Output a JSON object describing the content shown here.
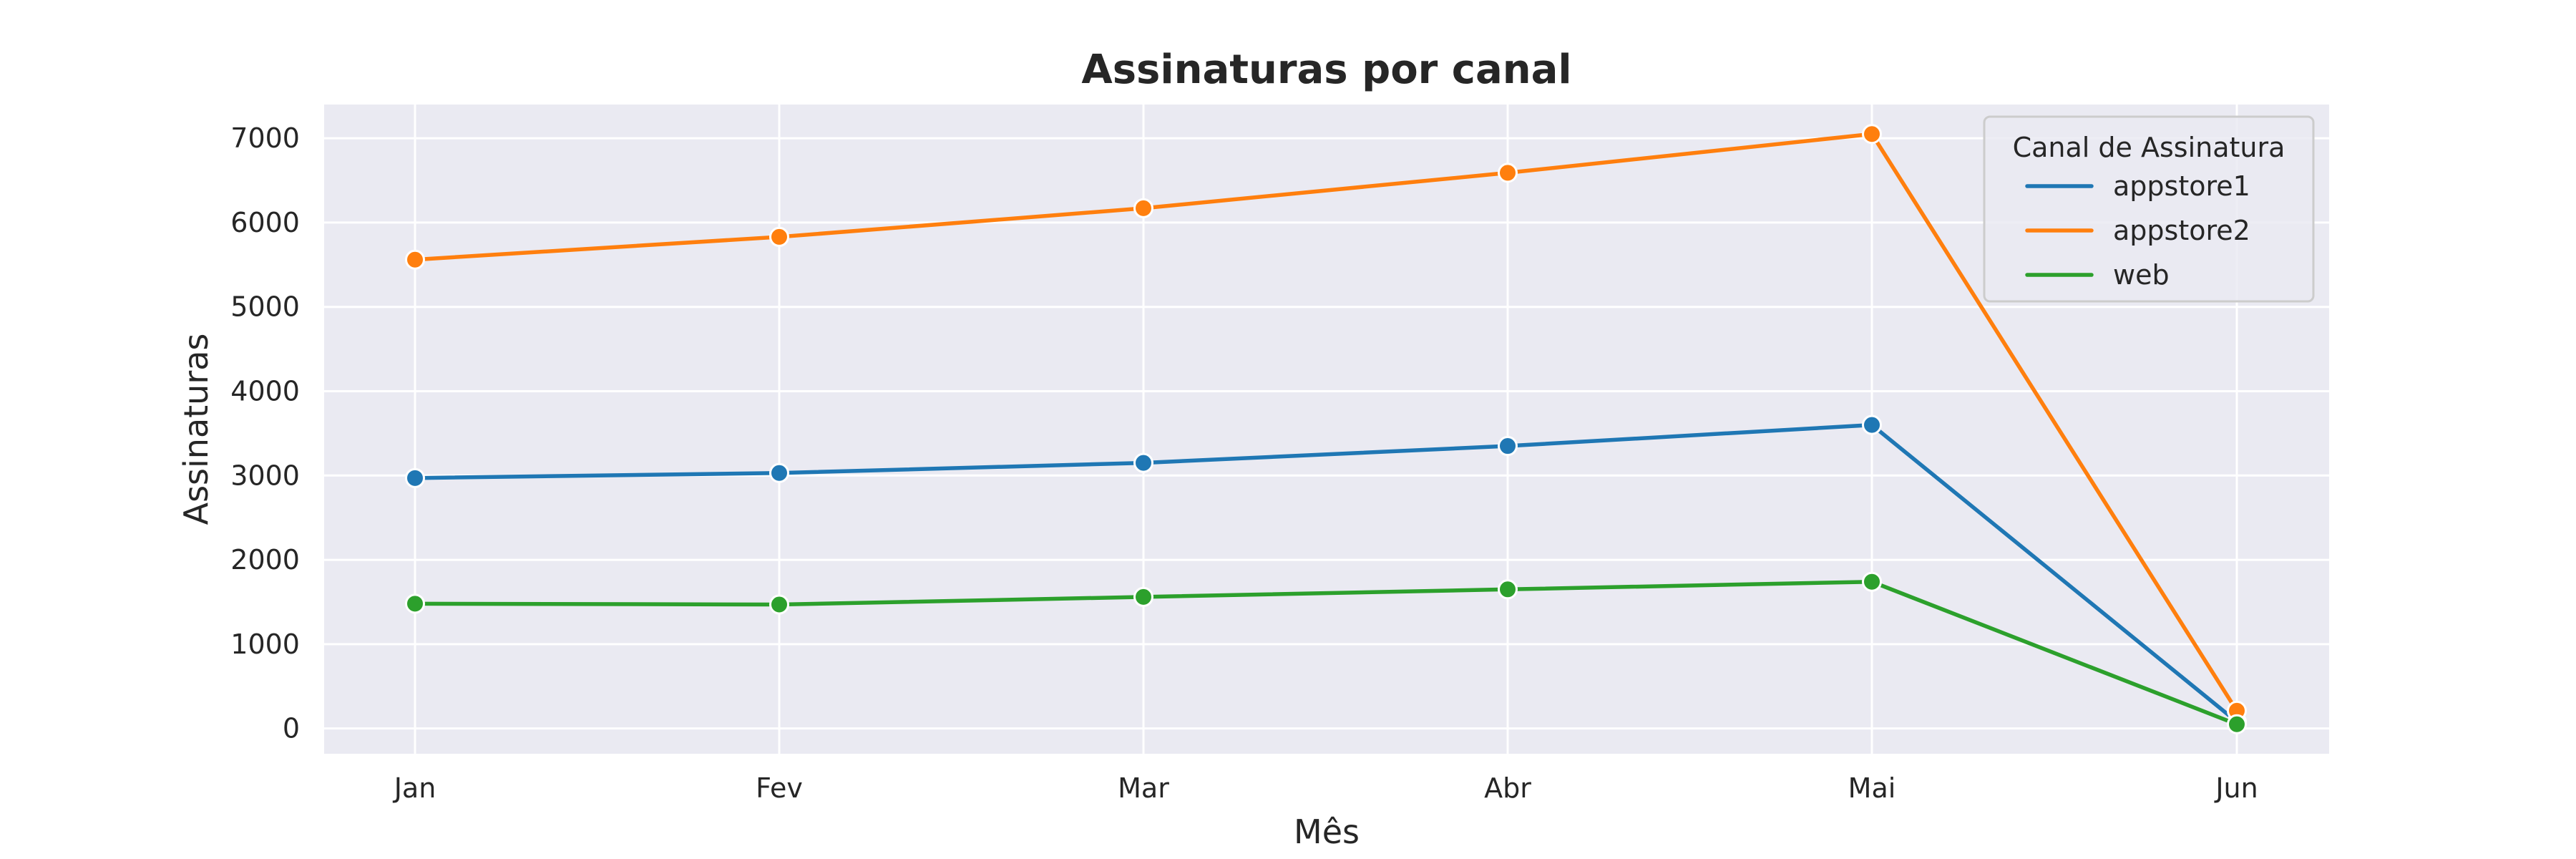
{
  "chart_data": {
    "type": "line",
    "title": "Assinaturas por canal",
    "xlabel": "Mês",
    "ylabel": "Assinaturas",
    "categories": [
      "Jan",
      "Fev",
      "Mar",
      "Abr",
      "Mai",
      "Jun"
    ],
    "ylim": [
      -300,
      7400
    ],
    "yticks": [
      0,
      1000,
      2000,
      3000,
      4000,
      5000,
      6000,
      7000
    ],
    "grid": true,
    "legend": {
      "title": "Canal de Assinatura",
      "placement": "top-right"
    },
    "series": [
      {
        "name": "appstore1",
        "color": "#1f77b4",
        "values": [
          2970,
          3030,
          3150,
          3350,
          3600,
          80
        ]
      },
      {
        "name": "appstore2",
        "color": "#ff7f0e",
        "values": [
          5560,
          5830,
          6170,
          6590,
          7050,
          210
        ]
      },
      {
        "name": "web",
        "color": "#2ca02c",
        "values": [
          1480,
          1470,
          1560,
          1650,
          1740,
          50
        ]
      }
    ],
    "background_color": "#eaeaf2",
    "grid_color": "#ffffff",
    "marker": "circle"
  }
}
